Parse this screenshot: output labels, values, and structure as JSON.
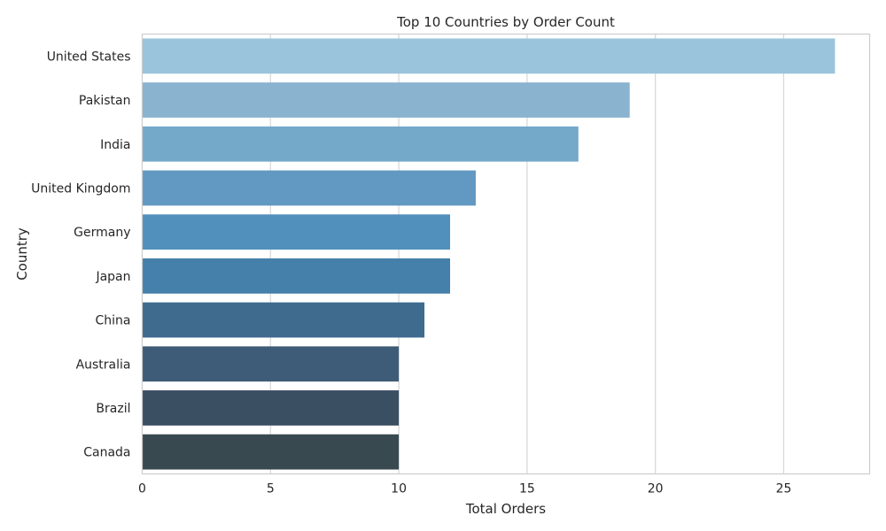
{
  "chart_data": {
    "type": "bar",
    "orientation": "horizontal",
    "title": "Top 10 Countries by Order Count",
    "xlabel": "Total Orders",
    "ylabel": "Country",
    "categories": [
      "United States",
      "Pakistan",
      "India",
      "United Kingdom",
      "Germany",
      "Japan",
      "China",
      "Australia",
      "Brazil",
      "Canada"
    ],
    "values": [
      27,
      19,
      17,
      13,
      12,
      12,
      11,
      10,
      10,
      10
    ],
    "xlim": [
      0,
      28.35
    ],
    "xticks": [
      "0",
      "5",
      "10",
      "15",
      "20",
      "25"
    ],
    "grid": "vertical",
    "legend": "none",
    "colors": [
      "#9ac4dc",
      "#8ab3cf",
      "#75a9c9",
      "#6299c2",
      "#5190bd",
      "#4580ab",
      "#3f6b8e",
      "#3e5c78",
      "#3b4f63",
      "#394950"
    ]
  }
}
